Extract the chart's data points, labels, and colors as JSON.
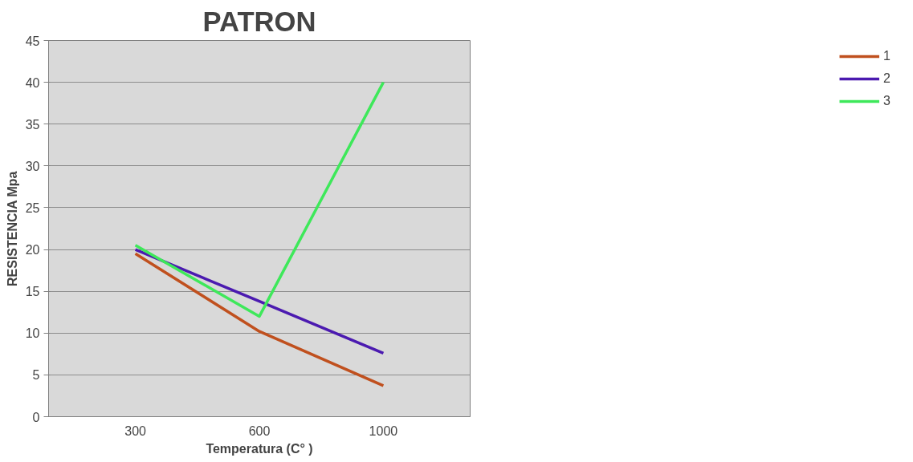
{
  "chart_data": {
    "type": "line",
    "title": "PATRON",
    "xlabel": "Temperatura (C° )",
    "ylabel": "RESISTENCIA Mpa",
    "categories": [
      "300",
      "600",
      "1000"
    ],
    "series": [
      {
        "name": "1",
        "color": "#c0501e",
        "values": [
          19.5,
          10.2,
          3.7
        ]
      },
      {
        "name": "2",
        "color": "#4b1ab0",
        "values": [
          20,
          13.8,
          7.6
        ]
      },
      {
        "name": "3",
        "color": "#3ee85a",
        "values": [
          20.5,
          12,
          40
        ]
      }
    ],
    "ylim": [
      0,
      45
    ],
    "yticks": [
      0,
      5,
      10,
      15,
      20,
      25,
      30,
      35,
      40,
      45
    ],
    "grid": "y",
    "legend": "right",
    "marker": "none",
    "line_style": "solid"
  }
}
